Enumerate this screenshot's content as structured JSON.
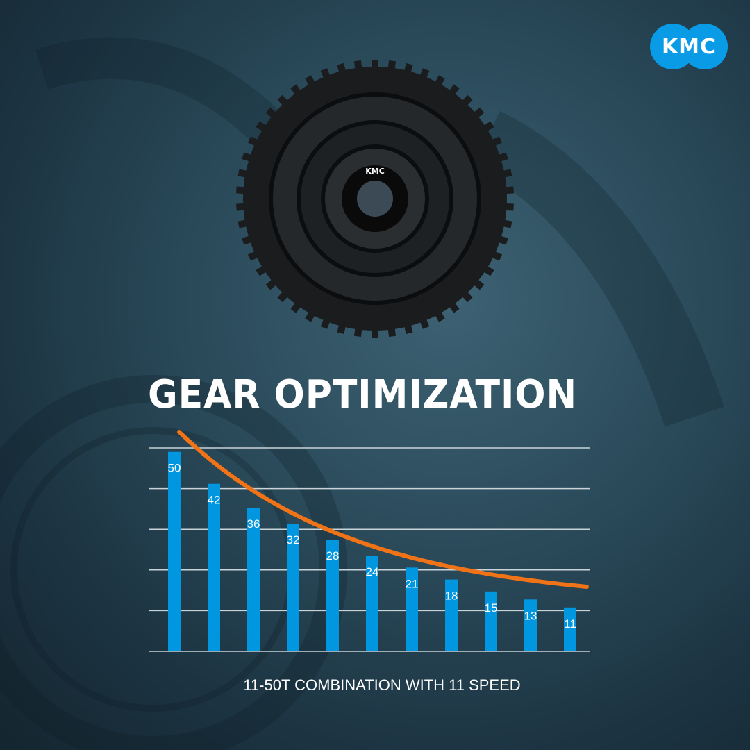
{
  "brand": {
    "logo_text": "KMC",
    "color": "#0a9be6"
  },
  "product": {
    "hub_label": "KMC"
  },
  "chart_data": {
    "type": "bar",
    "title": "GEAR OPTIMIZATION",
    "xlabel": "11-50T COMBINATION WITH 11 SPEED",
    "ylabel": "",
    "categories": [
      "50",
      "42",
      "36",
      "32",
      "28",
      "24",
      "21",
      "18",
      "15",
      "13",
      "11"
    ],
    "values": [
      50,
      42,
      36,
      32,
      28,
      24,
      21,
      18,
      15,
      13,
      11
    ],
    "data_labels": [
      "50",
      "42",
      "36",
      "32",
      "28",
      "24",
      "21",
      "18",
      "15",
      "13",
      "11"
    ],
    "ylim": [
      0,
      51
    ],
    "grid": true,
    "bar_color": "#0096e0",
    "trend_line": {
      "type": "decreasing curve",
      "color": "#f07318"
    }
  }
}
